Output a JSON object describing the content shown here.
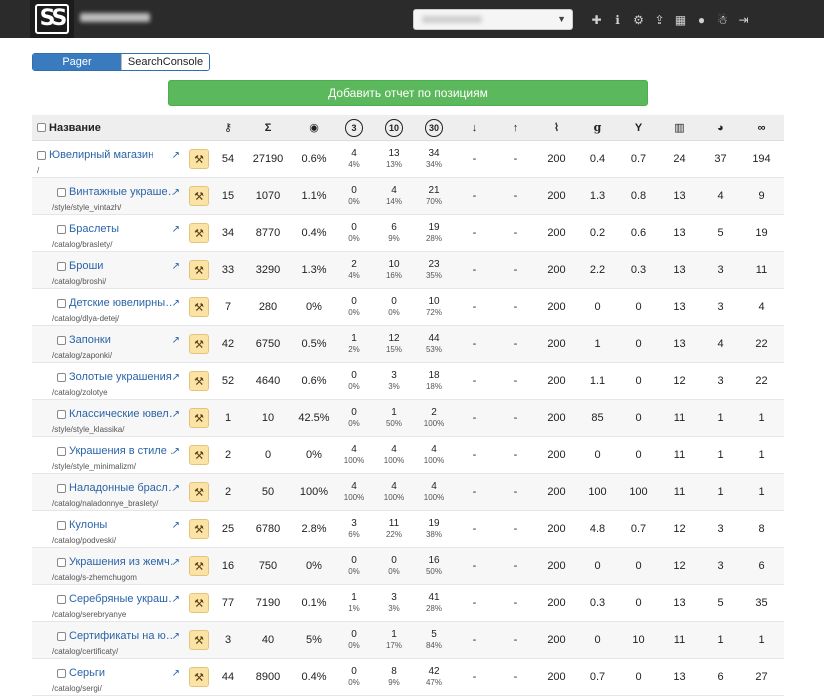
{
  "header": {
    "logo_text": "SS",
    "icons": [
      "plus-icon",
      "info-icon",
      "gears-icon",
      "upload-icon",
      "grid-icon",
      "user-icon",
      "bug-icon",
      "logout-icon"
    ]
  },
  "mode_tabs": [
    {
      "label": "Pager",
      "active": true
    },
    {
      "label": "SearchConsole",
      "active": false
    }
  ],
  "add_button_label": "Добавить отчет по позициям",
  "columns": {
    "name": "Название",
    "top3": "3",
    "top10": "10",
    "top30": "30",
    "icons": [
      "key-icon",
      "sum-icon",
      "eye-icon",
      "top3-icon",
      "top10-icon",
      "top30-icon",
      "arrow-down-icon",
      "arrow-up-icon",
      "rss-icon",
      "google-icon",
      "yandex-icon",
      "bar-chart-icon",
      "globe-icon",
      "link-icon"
    ]
  },
  "rows": [
    {
      "name": "Ювелирный магазин",
      "url": "/",
      "child": false,
      "n": "54",
      "vol": "27190",
      "ctr": "0.6%",
      "t3": "4",
      "t3p": "4%",
      "t10": "13",
      "t10p": "13%",
      "t30": "34",
      "t30p": "34%",
      "down": "-",
      "up": "-",
      "status": "200",
      "g": "0.4",
      "y": "0.7",
      "bars": "24",
      "web": "37",
      "links": "194"
    },
    {
      "name": "Винтажные украше…",
      "url": "/style/style_vintazh/",
      "child": true,
      "n": "15",
      "vol": "1070",
      "ctr": "1.1%",
      "t3": "0",
      "t3p": "0%",
      "t10": "4",
      "t10p": "14%",
      "t30": "21",
      "t30p": "70%",
      "down": "-",
      "up": "-",
      "status": "200",
      "g": "1.3",
      "y": "0.8",
      "bars": "13",
      "web": "4",
      "links": "9"
    },
    {
      "name": "Браслеты",
      "url": "/catalog/braslety/",
      "child": true,
      "n": "34",
      "vol": "8770",
      "ctr": "0.4%",
      "t3": "0",
      "t3p": "0%",
      "t10": "6",
      "t10p": "9%",
      "t30": "19",
      "t30p": "28%",
      "down": "-",
      "up": "-",
      "status": "200",
      "g": "0.2",
      "y": "0.6",
      "bars": "13",
      "web": "5",
      "links": "19"
    },
    {
      "name": "Броши",
      "url": "/catalog/broshi/",
      "child": true,
      "n": "33",
      "vol": "3290",
      "ctr": "1.3%",
      "t3": "2",
      "t3p": "4%",
      "t10": "10",
      "t10p": "16%",
      "t30": "23",
      "t30p": "35%",
      "down": "-",
      "up": "-",
      "status": "200",
      "g": "2.2",
      "y": "0.3",
      "bars": "13",
      "web": "3",
      "links": "11"
    },
    {
      "name": "Детские ювелирны…",
      "url": "/catalog/dlya-detej/",
      "child": true,
      "n": "7",
      "vol": "280",
      "ctr": "0%",
      "t3": "0",
      "t3p": "0%",
      "t10": "0",
      "t10p": "0%",
      "t30": "10",
      "t30p": "72%",
      "down": "-",
      "up": "-",
      "status": "200",
      "g": "0",
      "y": "0",
      "bars": "13",
      "web": "3",
      "links": "4"
    },
    {
      "name": "Запонки",
      "url": "/catalog/zaponki/",
      "child": true,
      "n": "42",
      "vol": "6750",
      "ctr": "0.5%",
      "t3": "1",
      "t3p": "2%",
      "t10": "12",
      "t10p": "15%",
      "t30": "44",
      "t30p": "53%",
      "down": "-",
      "up": "-",
      "status": "200",
      "g": "1",
      "y": "0",
      "bars": "13",
      "web": "4",
      "links": "22"
    },
    {
      "name": "Золотые украшения",
      "url": "/catalog/zolotye",
      "child": true,
      "n": "52",
      "vol": "4640",
      "ctr": "0.6%",
      "t3": "0",
      "t3p": "0%",
      "t10": "3",
      "t10p": "3%",
      "t30": "18",
      "t30p": "18%",
      "down": "-",
      "up": "-",
      "status": "200",
      "g": "1.1",
      "y": "0",
      "bars": "12",
      "web": "3",
      "links": "22"
    },
    {
      "name": "Классические ювел…",
      "url": "/style/style_klassika/",
      "child": true,
      "n": "1",
      "vol": "10",
      "ctr": "42.5%",
      "t3": "0",
      "t3p": "0%",
      "t10": "1",
      "t10p": "50%",
      "t30": "2",
      "t30p": "100%",
      "down": "-",
      "up": "-",
      "status": "200",
      "g": "85",
      "y": "0",
      "bars": "11",
      "web": "1",
      "links": "1"
    },
    {
      "name": "Украшения в стиле …",
      "url": "/style/style_minimalizm/",
      "child": true,
      "n": "2",
      "vol": "0",
      "ctr": "0%",
      "t3": "4",
      "t3p": "100%",
      "t10": "4",
      "t10p": "100%",
      "t30": "4",
      "t30p": "100%",
      "down": "-",
      "up": "-",
      "status": "200",
      "g": "0",
      "y": "0",
      "bars": "11",
      "web": "1",
      "links": "1"
    },
    {
      "name": "Наладонные брасл…",
      "url": "/catalog/naladonnye_braslety/",
      "child": true,
      "n": "2",
      "vol": "50",
      "ctr": "100%",
      "t3": "4",
      "t3p": "100%",
      "t10": "4",
      "t10p": "100%",
      "t30": "4",
      "t30p": "100%",
      "down": "-",
      "up": "-",
      "status": "200",
      "g": "100",
      "y": "100",
      "bars": "11",
      "web": "1",
      "links": "1"
    },
    {
      "name": "Кулоны",
      "url": "/catalog/podveski/",
      "child": true,
      "n": "25",
      "vol": "6780",
      "ctr": "2.8%",
      "t3": "3",
      "t3p": "6%",
      "t10": "11",
      "t10p": "22%",
      "t30": "19",
      "t30p": "38%",
      "down": "-",
      "up": "-",
      "status": "200",
      "g": "4.8",
      "y": "0.7",
      "bars": "12",
      "web": "3",
      "links": "8"
    },
    {
      "name": "Украшения из жемч…",
      "url": "/catalog/s-zhemchugom",
      "child": true,
      "n": "16",
      "vol": "750",
      "ctr": "0%",
      "t3": "0",
      "t3p": "0%",
      "t10": "0",
      "t10p": "0%",
      "t30": "16",
      "t30p": "50%",
      "down": "-",
      "up": "-",
      "status": "200",
      "g": "0",
      "y": "0",
      "bars": "12",
      "web": "3",
      "links": "6"
    },
    {
      "name": "Серебряные украш…",
      "url": "/catalog/serebryanye",
      "child": true,
      "n": "77",
      "vol": "7190",
      "ctr": "0.1%",
      "t3": "1",
      "t3p": "1%",
      "t10": "3",
      "t10p": "3%",
      "t30": "41",
      "t30p": "28%",
      "down": "-",
      "up": "-",
      "status": "200",
      "g": "0.3",
      "y": "0",
      "bars": "13",
      "web": "5",
      "links": "35"
    },
    {
      "name": "Сертификаты на ю…",
      "url": "/catalog/certificaty/",
      "child": true,
      "n": "3",
      "vol": "40",
      "ctr": "5%",
      "t3": "0",
      "t3p": "0%",
      "t10": "1",
      "t10p": "17%",
      "t30": "5",
      "t30p": "84%",
      "down": "-",
      "up": "-",
      "status": "200",
      "g": "0",
      "y": "10",
      "bars": "11",
      "web": "1",
      "links": "1"
    },
    {
      "name": "Серьги",
      "url": "/catalog/sergi/",
      "child": true,
      "n": "44",
      "vol": "8900",
      "ctr": "0.4%",
      "t3": "0",
      "t3p": "0%",
      "t10": "8",
      "t10p": "9%",
      "t30": "42",
      "t30p": "47%",
      "down": "-",
      "up": "-",
      "status": "200",
      "g": "0.7",
      "y": "0",
      "bars": "13",
      "web": "6",
      "links": "27"
    }
  ]
}
